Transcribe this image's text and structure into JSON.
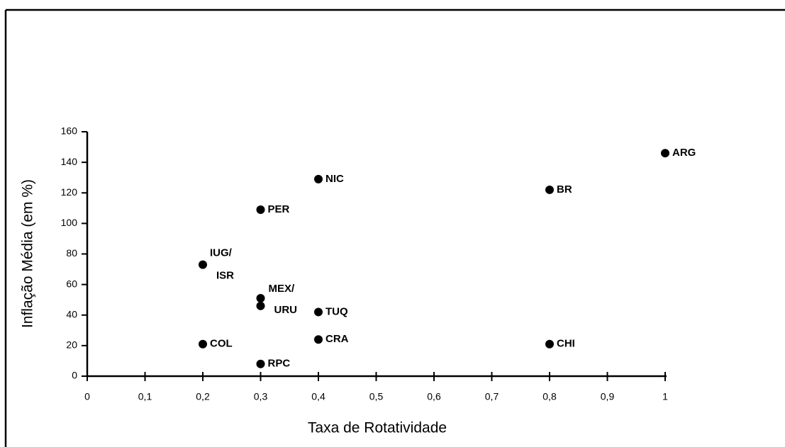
{
  "chart_data": {
    "type": "scatter",
    "x_label": "Taxa de Rotatividade",
    "y_label": "Inflação Média (em %)",
    "x": [
      1,
      0.8,
      0.4,
      0.3,
      0.2,
      0.3,
      0.3,
      0.4,
      0.4,
      0.2,
      0.8,
      0.3
    ],
    "values": [
      146,
      122,
      129,
      109,
      73,
      51,
      46,
      42,
      24,
      21,
      21,
      8
    ],
    "point_labels": [
      [
        "ARG"
      ],
      [
        "BR"
      ],
      [
        "NIC"
      ],
      [
        "PER"
      ],
      [
        "IUG/",
        "ISR"
      ],
      [
        "MEX/"
      ],
      [
        "URU"
      ],
      [
        "TUQ"
      ],
      [
        "CRA"
      ],
      [
        "COL"
      ],
      [
        "CHI"
      ],
      [
        "RPC"
      ]
    ],
    "color": "#000000",
    "xlim": [
      0,
      1
    ],
    "ylim": [
      0,
      160
    ],
    "xticks": [
      0,
      {
        "value": 0.1,
        "label": "0,1"
      },
      {
        "value": 0.2,
        "label": "0,2"
      },
      {
        "value": 0.3,
        "label": "0,3"
      },
      {
        "value": 0.4,
        "label": "0,4"
      },
      {
        "value": 0.5,
        "label": "0,5"
      },
      {
        "value": 0.6,
        "label": "0,6"
      },
      {
        "value": 0.7,
        "label": "0,7"
      },
      {
        "value": 0.8,
        "label": "0,8"
      },
      {
        "value": 0.9,
        "label": "0,9"
      },
      1
    ],
    "yticks": [
      0,
      20,
      40,
      60,
      80,
      100,
      120,
      140,
      160
    ]
  }
}
